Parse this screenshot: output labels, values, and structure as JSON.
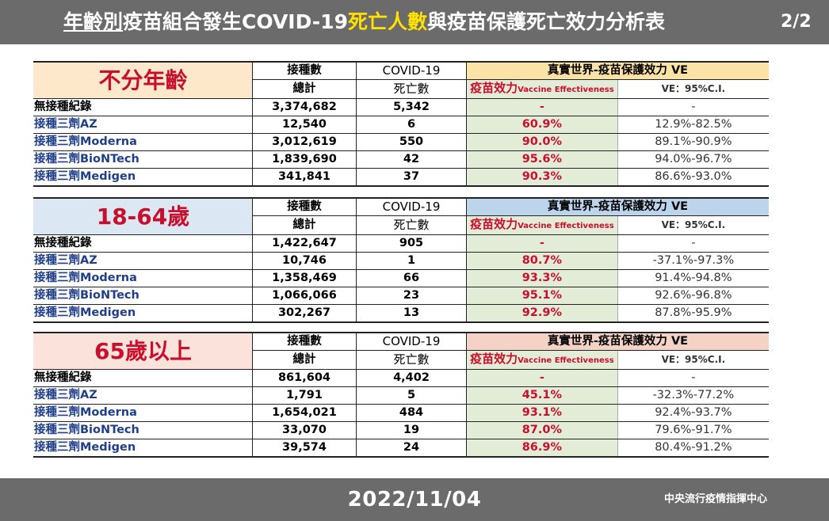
{
  "header": {
    "title_part1": "年齡別",
    "title_part2": "疫苗組合發生COVID-19",
    "title_part3": "死亡人數",
    "title_part4": "與疫苗保護死亡效力分析表",
    "page": "2/2"
  },
  "column_headers": {
    "doses_top": "接種數",
    "doses_bottom": "總計",
    "deaths_top": "COVID-19",
    "deaths_bottom": "死亡數",
    "ve_title": "真實世界-疫苗保護效力 VE",
    "ve_label": "疫苗效力",
    "ve_label_en": "Vaccine Effectiveness",
    "ci_label": "VE：95%C.I."
  },
  "colors": {
    "all_ages": "#fde8cc",
    "age_18_64": "#dbe7f2",
    "age_65_plus": "#fbe3dc",
    "ve_all_ages": "#fbe2a6",
    "ve_18_64": "#bdd5ec",
    "ve_65_plus": "#f4d3c6"
  },
  "groups": [
    {
      "title": "不分年齡",
      "rows": [
        {
          "name": "無接種紀錄",
          "doses": "3,374,682",
          "deaths": "5,342",
          "ve": "-",
          "ci": "-"
        },
        {
          "name": "接種三劑AZ",
          "doses": "12,540",
          "deaths": "6",
          "ve": "60.9%",
          "ci": "12.9%-82.5%"
        },
        {
          "name": "接種三劑Moderna",
          "doses": "3,012,619",
          "deaths": "550",
          "ve": "90.0%",
          "ci": "89.1%-90.9%"
        },
        {
          "name": "接種三劑BioNTech",
          "doses": "1,839,690",
          "deaths": "42",
          "ve": "95.6%",
          "ci": "94.0%-96.7%"
        },
        {
          "name": "接種三劑Medigen",
          "doses": "341,841",
          "deaths": "37",
          "ve": "90.3%",
          "ci": "86.6%-93.0%"
        }
      ]
    },
    {
      "title": "18-64歲",
      "rows": [
        {
          "name": "無接種紀錄",
          "doses": "1,422,647",
          "deaths": "905",
          "ve": "-",
          "ci": "-"
        },
        {
          "name": "接種三劑AZ",
          "doses": "10,746",
          "deaths": "1",
          "ve": "80.7%",
          "ci": "-37.1%-97.3%"
        },
        {
          "name": "接種三劑Moderna",
          "doses": "1,358,469",
          "deaths": "66",
          "ve": "93.3%",
          "ci": "91.4%-94.8%"
        },
        {
          "name": "接種三劑BioNTech",
          "doses": "1,066,066",
          "deaths": "23",
          "ve": "95.1%",
          "ci": "92.6%-96.8%"
        },
        {
          "name": "接種三劑Medigen",
          "doses": "302,267",
          "deaths": "13",
          "ve": "92.9%",
          "ci": "87.8%-95.9%"
        }
      ]
    },
    {
      "title": "65歲以上",
      "rows": [
        {
          "name": "無接種紀錄",
          "doses": "861,604",
          "deaths": "4,402",
          "ve": "-",
          "ci": "-"
        },
        {
          "name": "接種三劑AZ",
          "doses": "1,791",
          "deaths": "5",
          "ve": "45.1%",
          "ci": "-32.3%-77.2%"
        },
        {
          "name": "接種三劑Moderna",
          "doses": "1,654,021",
          "deaths": "484",
          "ve": "93.1%",
          "ci": "92.4%-93.7%"
        },
        {
          "name": "接種三劑BioNTech",
          "doses": "33,070",
          "deaths": "19",
          "ve": "87.0%",
          "ci": "79.6%-91.7%"
        },
        {
          "name": "接種三劑Medigen",
          "doses": "39,574",
          "deaths": "24",
          "ve": "86.9%",
          "ci": "80.4%-91.2%"
        }
      ]
    }
  ],
  "footer": {
    "date": "2022/11/04",
    "organization": "中央流行疫情指揮中心"
  }
}
